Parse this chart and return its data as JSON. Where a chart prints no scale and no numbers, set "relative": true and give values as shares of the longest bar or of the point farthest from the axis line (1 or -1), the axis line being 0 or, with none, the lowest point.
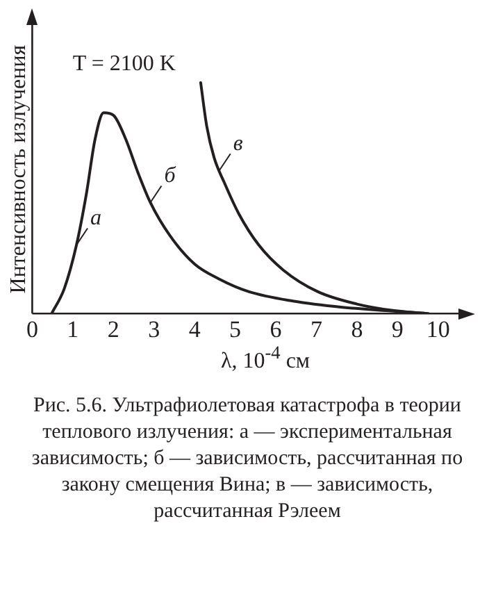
{
  "chart_data": {
    "type": "line",
    "relative": true,
    "ylabel": "Интенсивность излучения",
    "xlabel": "λ, 10$^{-4}$ см",
    "xlim": [
      0,
      10.5
    ],
    "xticks": [
      0,
      1,
      2,
      3,
      4,
      5,
      6,
      7,
      8,
      9,
      10
    ],
    "grid": false,
    "legend": false,
    "marker": "none",
    "line_style": "solid",
    "series": [
      {
        "color": "#231f20",
        "x": [
          0.48,
          0.79,
          1.09,
          1.33,
          1.55,
          1.76,
          2.0,
          2.3,
          2.61,
          2.91,
          3.39,
          3.99,
          4.61,
          5.33,
          6.42,
          7.64,
          8.85,
          9.76
        ],
        "values": [
          0,
          0.108,
          0.297,
          0.514,
          0.757,
          0.87,
          0.859,
          0.757,
          0.608,
          0.481,
          0.338,
          0.216,
          0.149,
          0.095,
          0.054,
          0.027,
          0.011,
          0
        ]
      },
      {
        "color": "#231f20",
        "x": [
          4.15,
          4.3,
          4.48,
          4.73,
          5.09,
          5.58,
          6.18,
          7.03,
          8.0,
          8.85,
          9.7
        ],
        "values": [
          1,
          0.811,
          0.676,
          0.568,
          0.432,
          0.297,
          0.189,
          0.095,
          0.041,
          0.014,
          0
        ]
      }
    ],
    "annotations": [
      "T = 2100 K",
      {
        "text": "а",
        "x": 1.09,
        "y": 0.297
      },
      {
        "text": "б",
        "x": 2.91,
        "y": 0.481
      },
      {
        "text": "в",
        "x": 4.61,
        "y": 0.62
      },
      "Рис. 5.6. Ультрафиолетовая катастрофа в теории теплового излучения: а — экспериментальная зависимость; б — зависимость, рассчитанная по закону смещения Вина; в — зависимость, рассчитанная Рэлеем"
    ]
  }
}
